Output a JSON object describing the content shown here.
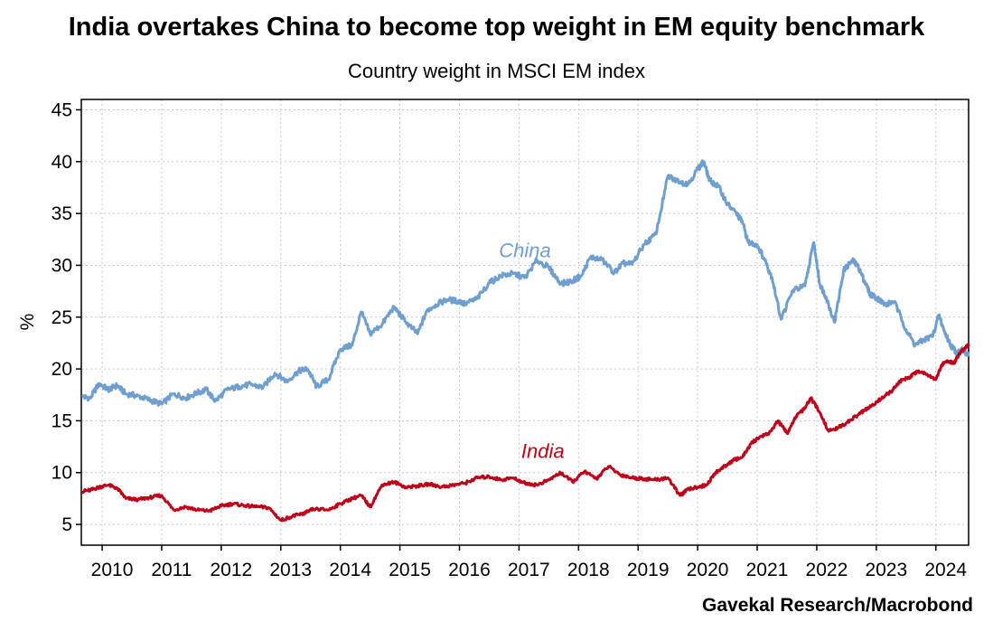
{
  "title": "India overtakes China to become top weight in EM equity benchmark",
  "subtitle": "Country weight in MSCI EM index",
  "source": "Gavekal Research/Macrobond",
  "chart_data": {
    "type": "line",
    "title": "India overtakes China to become top weight in EM equity benchmark",
    "subtitle": "Country weight in MSCI EM index",
    "ylabel": "%",
    "xlabel": "",
    "xlim": [
      2009.65,
      2024.55
    ],
    "ylim": [
      3,
      46
    ],
    "yticks": [
      5,
      10,
      15,
      20,
      25,
      30,
      35,
      40,
      45
    ],
    "xticks": [
      "2010",
      "2011",
      "2012",
      "2013",
      "2014",
      "2015",
      "2016",
      "2017",
      "2018",
      "2019",
      "2020",
      "2021",
      "2022",
      "2023",
      "2024"
    ],
    "grid": true,
    "legend": "inline labels",
    "series": [
      {
        "name": "China",
        "color": "#6f9fd0",
        "x": [
          2009.67,
          2009.8,
          2009.95,
          2010.1,
          2010.25,
          2010.4,
          2010.6,
          2010.8,
          2011.0,
          2011.2,
          2011.4,
          2011.6,
          2011.75,
          2011.9,
          2012.1,
          2012.3,
          2012.5,
          2012.7,
          2012.9,
          2013.1,
          2013.3,
          2013.45,
          2013.6,
          2013.8,
          2014.0,
          2014.2,
          2014.35,
          2014.5,
          2014.7,
          2014.9,
          2015.1,
          2015.3,
          2015.45,
          2015.6,
          2015.8,
          2016.0,
          2016.1,
          2016.3,
          2016.5,
          2016.7,
          2016.9,
          2017.1,
          2017.3,
          2017.5,
          2017.7,
          2017.9,
          2018.05,
          2018.2,
          2018.4,
          2018.6,
          2018.75,
          2018.9,
          2019.1,
          2019.3,
          2019.5,
          2019.7,
          2019.85,
          2020.0,
          2020.1,
          2020.2,
          2020.35,
          2020.5,
          2020.65,
          2020.75,
          2020.85,
          2021.0,
          2021.15,
          2021.25,
          2021.4,
          2021.6,
          2021.8,
          2021.95,
          2022.05,
          2022.15,
          2022.3,
          2022.45,
          2022.6,
          2022.7,
          2022.8,
          2022.9,
          2023.0,
          2023.15,
          2023.3,
          2023.5,
          2023.65,
          2023.8,
          2023.95,
          2024.05,
          2024.15,
          2024.25,
          2024.35,
          2024.45,
          2024.55
        ],
        "values": [
          17.3,
          17.2,
          18.6,
          18.0,
          18.4,
          17.6,
          17.4,
          17.0,
          16.6,
          17.6,
          17.2,
          17.7,
          18.0,
          16.9,
          18.0,
          18.3,
          18.5,
          18.2,
          19.6,
          18.8,
          19.8,
          20.0,
          18.3,
          19.0,
          21.9,
          22.3,
          25.5,
          23.4,
          24.3,
          26.0,
          24.5,
          23.4,
          25.6,
          26.2,
          26.7,
          26.5,
          26.3,
          26.8,
          28.3,
          29.0,
          29.2,
          28.8,
          30.5,
          29.8,
          28.2,
          28.5,
          29.0,
          30.8,
          30.5,
          29.3,
          30.2,
          30.1,
          32.0,
          33.0,
          38.6,
          38.0,
          37.9,
          39.3,
          40.0,
          38.2,
          37.6,
          35.9,
          35.0,
          34.2,
          32.2,
          32.0,
          30.2,
          28.8,
          24.8,
          27.6,
          28.0,
          32.2,
          28.2,
          27.0,
          24.5,
          29.5,
          30.5,
          29.8,
          28.5,
          27.2,
          26.9,
          26.2,
          26.5,
          23.8,
          22.3,
          22.8,
          23.2,
          25.2,
          23.5,
          22.3,
          21.6,
          21.8,
          21.2
        ]
      },
      {
        "name": "India",
        "color": "#c00018",
        "x": [
          2009.67,
          2009.8,
          2009.95,
          2010.1,
          2010.25,
          2010.4,
          2010.6,
          2010.8,
          2011.0,
          2011.2,
          2011.4,
          2011.6,
          2011.8,
          2012.0,
          2012.2,
          2012.4,
          2012.6,
          2012.8,
          2013.0,
          2013.2,
          2013.35,
          2013.45,
          2013.55,
          2013.8,
          2014.0,
          2014.2,
          2014.35,
          2014.5,
          2014.7,
          2014.9,
          2015.1,
          2015.3,
          2015.5,
          2015.7,
          2015.9,
          2016.1,
          2016.3,
          2016.5,
          2016.7,
          2016.9,
          2017.1,
          2017.3,
          2017.5,
          2017.7,
          2017.9,
          2018.1,
          2018.3,
          2018.5,
          2018.7,
          2018.9,
          2019.1,
          2019.3,
          2019.5,
          2019.7,
          2019.85,
          2020.0,
          2020.15,
          2020.3,
          2020.45,
          2020.6,
          2020.75,
          2020.9,
          2021.05,
          2021.2,
          2021.35,
          2021.5,
          2021.65,
          2021.8,
          2021.9,
          2022.05,
          2022.2,
          2022.35,
          2022.5,
          2022.65,
          2022.8,
          2022.95,
          2023.1,
          2023.25,
          2023.4,
          2023.55,
          2023.7,
          2023.85,
          2024.0,
          2024.1,
          2024.2,
          2024.3,
          2024.4,
          2024.5,
          2024.55
        ],
        "values": [
          8.2,
          8.3,
          8.6,
          8.8,
          8.5,
          7.5,
          7.4,
          7.6,
          7.8,
          6.4,
          6.7,
          6.4,
          6.3,
          6.8,
          7.0,
          6.8,
          6.7,
          6.6,
          5.4,
          5.8,
          6.0,
          6.2,
          6.5,
          6.4,
          7.0,
          7.5,
          7.8,
          6.7,
          8.8,
          9.1,
          8.6,
          8.7,
          8.9,
          8.6,
          8.8,
          9.0,
          9.5,
          9.6,
          9.3,
          9.5,
          9.0,
          8.8,
          9.3,
          10.0,
          9.1,
          10.1,
          9.4,
          10.6,
          9.8,
          9.5,
          9.4,
          9.3,
          9.5,
          7.8,
          8.4,
          8.6,
          8.8,
          10.0,
          10.6,
          11.2,
          11.5,
          12.8,
          13.5,
          13.8,
          15.0,
          13.8,
          15.4,
          16.2,
          17.2,
          15.8,
          14.0,
          14.3,
          14.8,
          15.4,
          16.0,
          16.5,
          17.3,
          17.8,
          18.8,
          19.2,
          19.8,
          19.5,
          19.0,
          20.4,
          20.8,
          20.5,
          21.5,
          22.1,
          22.4
        ]
      }
    ]
  }
}
